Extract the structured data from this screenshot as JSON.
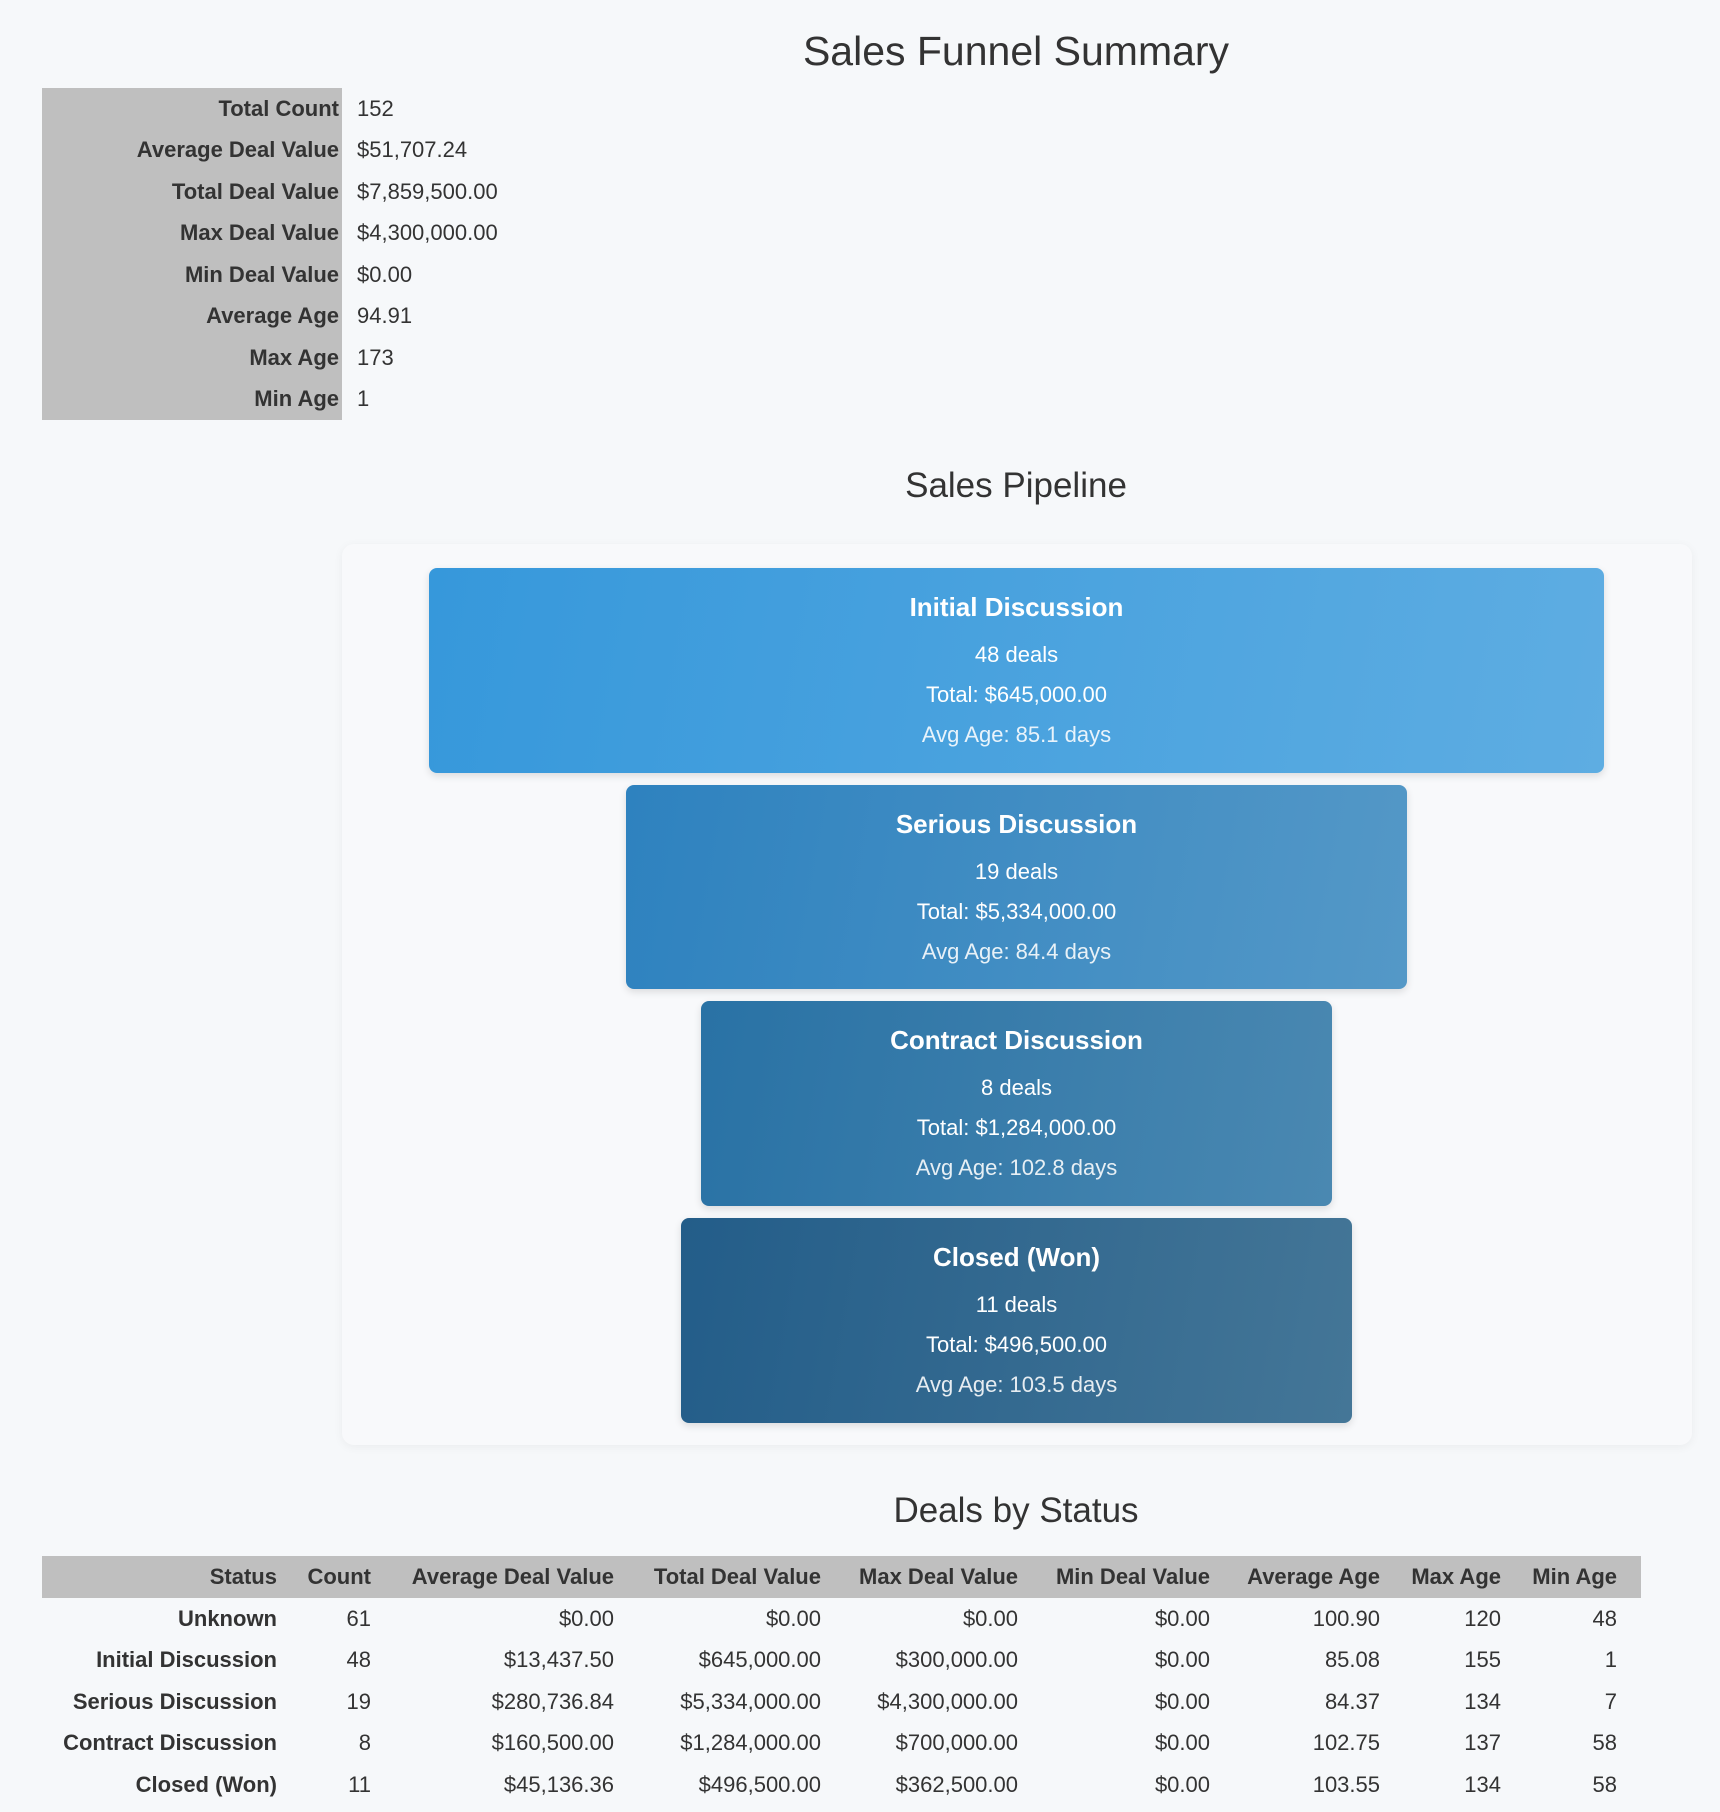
{
  "page": {
    "title": "Sales Funnel Summary"
  },
  "summary": {
    "rows": [
      {
        "label": "Total Count",
        "value": "152"
      },
      {
        "label": "Average Deal Value",
        "value": "$51,707.24"
      },
      {
        "label": "Total Deal Value",
        "value": "$7,859,500.00"
      },
      {
        "label": "Max Deal Value",
        "value": "$4,300,000.00"
      },
      {
        "label": "Min Deal Value",
        "value": "$0.00"
      },
      {
        "label": "Average Age",
        "value": "94.91"
      },
      {
        "label": "Max Age",
        "value": "173"
      },
      {
        "label": "Min Age",
        "value": "1"
      }
    ]
  },
  "pipeline": {
    "title": "Sales Pipeline",
    "stages": [
      {
        "name": "Initial Discussion",
        "deals": "48 deals",
        "total": "Total: $645,000.00",
        "avg_age": "Avg Age: 85.1 days",
        "color_start": "#3698db",
        "color_end": "#5eade2"
      },
      {
        "name": "Serious Discussion",
        "deals": "19 deals",
        "total": "Total: $5,334,000.00",
        "avg_age": "Avg Age: 84.4 days",
        "color_start": "#2e82bf",
        "color_end": "#5498c7"
      },
      {
        "name": "Contract Discussion",
        "deals": "8 deals",
        "total": "Total: $1,284,000.00",
        "avg_age": "Avg Age: 102.8 days",
        "color_start": "#2972a5",
        "color_end": "#4a88b1"
      },
      {
        "name": "Closed (Won)",
        "deals": "11 deals",
        "total": "Total: $496,500.00",
        "avg_age": "Avg Age: 103.5 days",
        "color_start": "#235d89",
        "color_end": "#447697"
      }
    ]
  },
  "deals_by_status": {
    "title": "Deals by Status",
    "columns": [
      "Status",
      "Count",
      "Average Deal Value",
      "Total Deal Value",
      "Max Deal Value",
      "Min Deal Value",
      "Average Age",
      "Max Age",
      "Min Age"
    ],
    "rows": [
      [
        "Unknown",
        "61",
        "$0.00",
        "$0.00",
        "$0.00",
        "$0.00",
        "100.90",
        "120",
        "48"
      ],
      [
        "Initial Discussion",
        "48",
        "$13,437.50",
        "$645,000.00",
        "$300,000.00",
        "$0.00",
        "85.08",
        "155",
        "1"
      ],
      [
        "Serious Discussion",
        "19",
        "$280,736.84",
        "$5,334,000.00",
        "$4,300,000.00",
        "$0.00",
        "84.37",
        "134",
        "7"
      ],
      [
        "Contract Discussion",
        "8",
        "$160,500.00",
        "$1,284,000.00",
        "$700,000.00",
        "$0.00",
        "102.75",
        "137",
        "58"
      ],
      [
        "Closed (Won)",
        "11",
        "$45,136.36",
        "$496,500.00",
        "$362,500.00",
        "$0.00",
        "103.55",
        "134",
        "58"
      ]
    ]
  },
  "chart_data": {
    "type": "funnel",
    "title": "Sales Pipeline",
    "categories": [
      "Initial Discussion",
      "Serious Discussion",
      "Contract Discussion",
      "Closed (Won)"
    ],
    "series": [
      {
        "name": "Deals",
        "values": [
          48,
          19,
          8,
          11
        ]
      },
      {
        "name": "Total",
        "values": [
          645000,
          5334000,
          1284000,
          496500
        ]
      },
      {
        "name": "Avg Age (days)",
        "values": [
          85.1,
          84.4,
          102.8,
          103.5
        ]
      }
    ]
  }
}
